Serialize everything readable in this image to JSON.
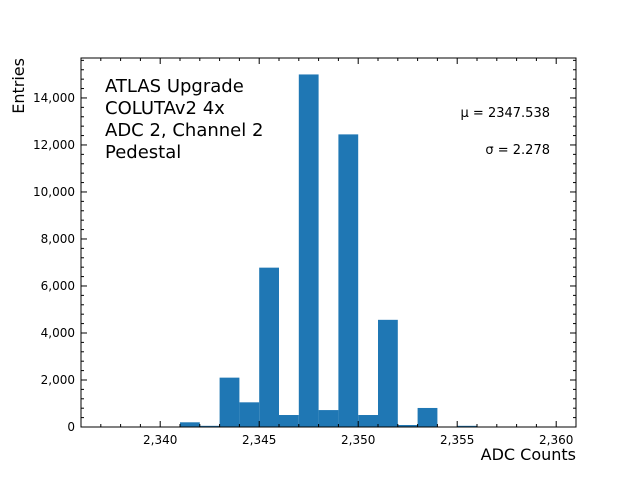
{
  "chart_data": {
    "type": "bar",
    "title": "",
    "xlabel": "ADC Counts",
    "ylabel": "Entries",
    "xlim": [
      2336,
      2361
    ],
    "ylim": [
      0,
      15700
    ],
    "xticks": [
      2340,
      2345,
      2350,
      2355,
      2360
    ],
    "xtick_labels": [
      "2,340",
      "2,345",
      "2,350",
      "2,355",
      "2,360"
    ],
    "yticks": [
      0,
      2000,
      4000,
      6000,
      8000,
      10000,
      12000,
      14000
    ],
    "ytick_labels": [
      "0",
      "2,000",
      "4,000",
      "6,000",
      "8,000",
      "10,000",
      "12,000",
      "14,000"
    ],
    "bin_edges_start": [
      2341,
      2342,
      2343,
      2344,
      2345,
      2346,
      2347,
      2348,
      2349,
      2350,
      2351,
      2352,
      2353,
      2354,
      2355
    ],
    "values": [
      200,
      50,
      2100,
      1050,
      6780,
      510,
      15000,
      720,
      12450,
      510,
      4560,
      85,
      810,
      0,
      50
    ],
    "bar_color": "#1f77b4",
    "grid": false,
    "annotations": [
      "ATLAS Upgrade",
      "COLUTAv2 4x",
      "ADC 2, Channel 2",
      "Pedestal"
    ],
    "stats": {
      "mu": "μ = 2347.538",
      "sigma": "σ = 2.278"
    }
  }
}
